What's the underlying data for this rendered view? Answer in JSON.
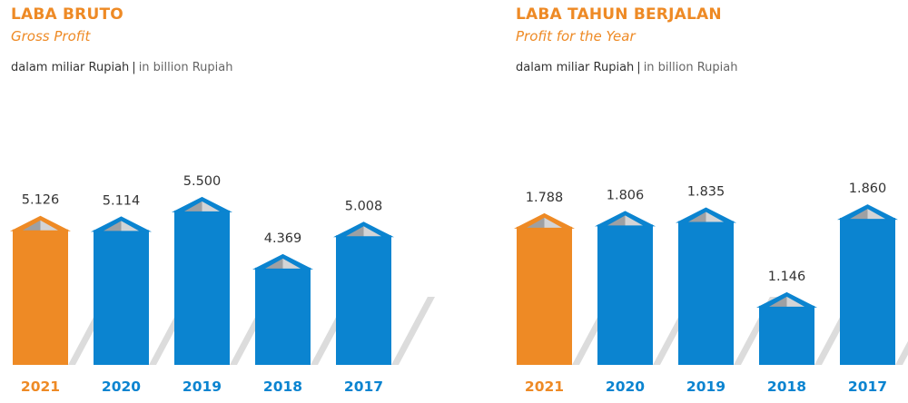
{
  "colors": {
    "highlight": "#ee8a25",
    "bar": "#0b84d0",
    "shadow": "#dcdcdc"
  },
  "chart_data": [
    {
      "type": "bar",
      "title": "LABA BRUTO",
      "subtitle": "Gross Profit",
      "unit_id": "dalam miliar Rupiah",
      "unit_en": "in billion Rupiah",
      "categories": [
        "2021",
        "2020",
        "2019",
        "2018",
        "2017"
      ],
      "values": [
        5126,
        5114,
        5500,
        4369,
        5008
      ],
      "value_labels": [
        "5.126",
        "5.114",
        "5.500",
        "4.369",
        "5.008"
      ],
      "highlight_category": "2021",
      "grid": false,
      "legend": "none"
    },
    {
      "type": "bar",
      "title": "LABA TAHUN BERJALAN",
      "subtitle": "Profit for the Year",
      "unit_id": "dalam miliar Rupiah",
      "unit_en": "in billion Rupiah",
      "categories": [
        "2021",
        "2020",
        "2019",
        "2018",
        "2017"
      ],
      "values": [
        1788,
        1806,
        1835,
        1146,
        1860
      ],
      "value_labels": [
        "1.788",
        "1.806",
        "1.835",
        "1.146",
        "1.860"
      ],
      "highlight_category": "2021",
      "grid": false,
      "legend": "none"
    }
  ]
}
